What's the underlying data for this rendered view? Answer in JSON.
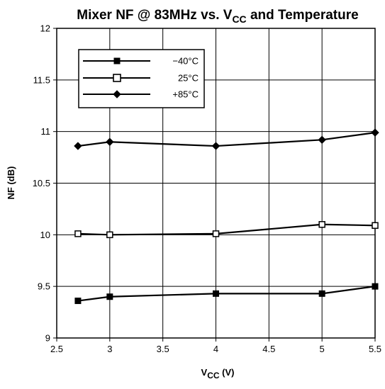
{
  "chart_data": {
    "type": "line",
    "title_main": "Mixer NF @ 83MHz vs. V",
    "title_sub": "CC",
    "title_tail": " and Temperature",
    "xlabel_main": "V",
    "xlabel_sub": "CC",
    "xlabel_tail": " (V)",
    "ylabel": "NF (dB)",
    "xlim": [
      2.5,
      5.5
    ],
    "ylim": [
      9,
      12
    ],
    "x_ticks": [
      "2.5",
      "3",
      "3.5",
      "4",
      "4.5",
      "5",
      "5.5"
    ],
    "y_ticks": [
      "9",
      "9.5",
      "10",
      "10.5",
      "11",
      "11.5",
      "12"
    ],
    "grid": true,
    "legend_position": "top-left",
    "x": [
      2.7,
      3.0,
      4.0,
      5.0,
      5.5
    ],
    "series": [
      {
        "name": "−40°C",
        "marker": "filled-square",
        "values": [
          9.36,
          9.4,
          9.43,
          9.43,
          9.5
        ]
      },
      {
        "name": "25°C",
        "marker": "open-square",
        "values": [
          10.01,
          10.0,
          10.01,
          10.1,
          10.09
        ]
      },
      {
        "name": "+85°C",
        "marker": "filled-diamond",
        "values": [
          10.86,
          10.9,
          10.86,
          10.92,
          10.99
        ]
      }
    ]
  }
}
